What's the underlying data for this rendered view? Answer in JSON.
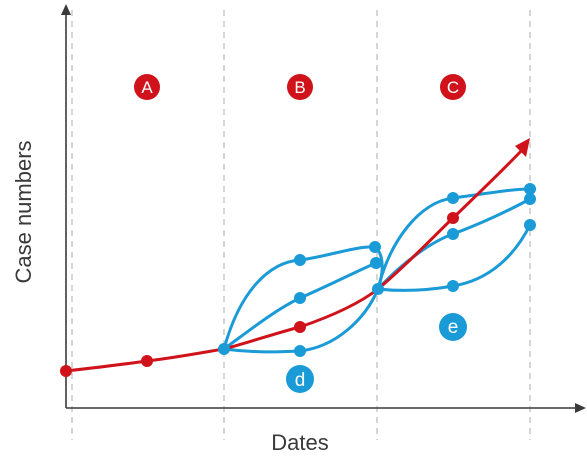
{
  "axes": {
    "y_label": "Case numbers",
    "x_label": "Dates"
  },
  "phases": [
    {
      "id": "phase-a",
      "label": "A"
    },
    {
      "id": "phase-b",
      "label": "B"
    },
    {
      "id": "phase-c",
      "label": "C"
    }
  ],
  "branch_labels": [
    {
      "id": "branch-d",
      "label": "d"
    },
    {
      "id": "branch-e",
      "label": "e"
    }
  ],
  "colors": {
    "axis": "#3a3a3a",
    "divider": "#c8c8c8",
    "main_trend": "#d0121b",
    "scenarios": "#1a9ad6",
    "phase_badge": "#d0121b",
    "branch_badge": "#1a9ad6",
    "text": "#3a3a3a"
  }
}
